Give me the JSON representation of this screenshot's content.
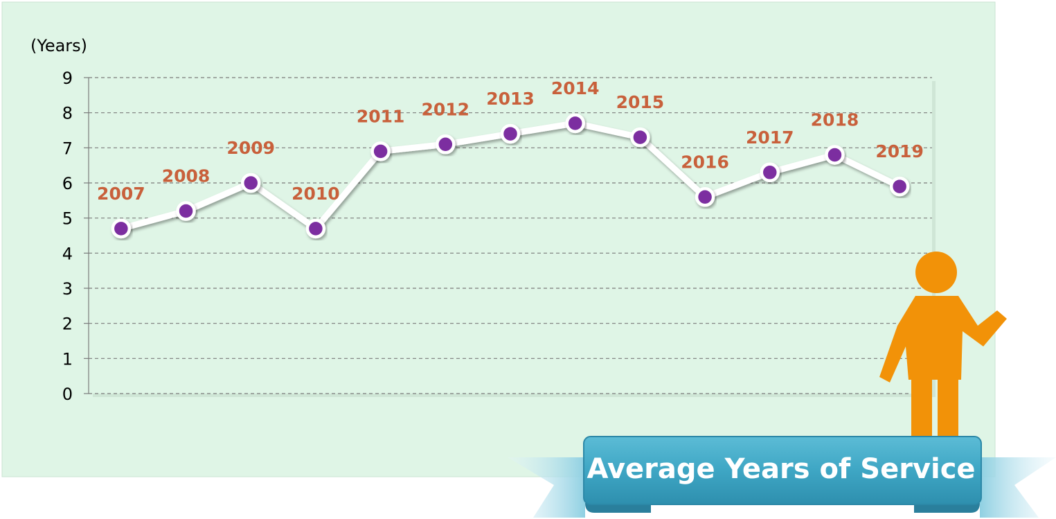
{
  "chart_data": {
    "type": "line",
    "title": "Average Years of Service",
    "ylabel": "(Years)",
    "ylim": [
      0,
      9
    ],
    "yticks": [
      "0",
      "1",
      "2",
      "3",
      "4",
      "5",
      "6",
      "7",
      "8",
      "9"
    ],
    "x": [
      "2007",
      "2008",
      "2009",
      "2010",
      "2011",
      "2012",
      "2013",
      "2014",
      "2015",
      "2016",
      "2017",
      "2018",
      "2019"
    ],
    "values": [
      4.7,
      5.2,
      6.0,
      4.7,
      6.9,
      7.1,
      7.4,
      7.7,
      7.3,
      5.6,
      6.3,
      6.8,
      5.9
    ],
    "grid": true,
    "colors": {
      "background": "#dff5e6",
      "line": "#ffffff",
      "marker": "#7b2fa0",
      "label": "#c8603b",
      "ribbon": "#3ea6c4",
      "figure": "#f29208"
    }
  }
}
